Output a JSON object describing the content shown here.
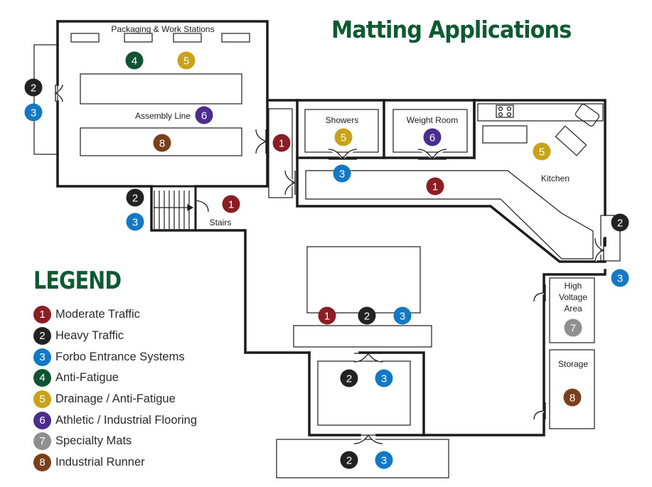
{
  "title": "Matting Applications",
  "colors": {
    "wall": "#1c1c1c",
    "title_green": "#0e5a33",
    "traffic": {
      "1": "#8b1d24",
      "2": "#222222",
      "3": "#1479c4",
      "4": "#0f5332",
      "5": "#c9a21a",
      "6": "#4a2d8c",
      "7": "#8f8f8f",
      "8": "#7b3f1a"
    }
  },
  "rooms": {
    "packaging": "Packaging & Work Stations",
    "assembly": "Assembly Line",
    "showers": "Showers",
    "weight_room": "Weight Room",
    "kitchen": "Kitchen",
    "stairs": "Stairs",
    "high_voltage": [
      "High",
      "Voltage",
      "Area"
    ],
    "storage": "Storage"
  },
  "markers": [
    "4",
    "5",
    "2",
    "3",
    "6",
    "8",
    "1",
    "2",
    "3",
    "1",
    "5",
    "6",
    "3",
    "1",
    "5",
    "2",
    "3",
    "1",
    "2",
    "3",
    "7",
    "2",
    "3",
    "8",
    "2",
    "3"
  ],
  "legend": {
    "title": "LEGEND",
    "items": [
      {
        "num": "1",
        "label": "Moderate Traffic"
      },
      {
        "num": "2",
        "label": "Heavy Traffic"
      },
      {
        "num": "3",
        "label": "Forbo Entrance Systems"
      },
      {
        "num": "4",
        "label": "Anti-Fatigue"
      },
      {
        "num": "5",
        "label": "Drainage / Anti-Fatigue"
      },
      {
        "num": "6",
        "label": "Athletic / Industrial Flooring"
      },
      {
        "num": "7",
        "label": "Specialty Mats"
      },
      {
        "num": "8",
        "label": "Industrial Runner"
      }
    ]
  }
}
